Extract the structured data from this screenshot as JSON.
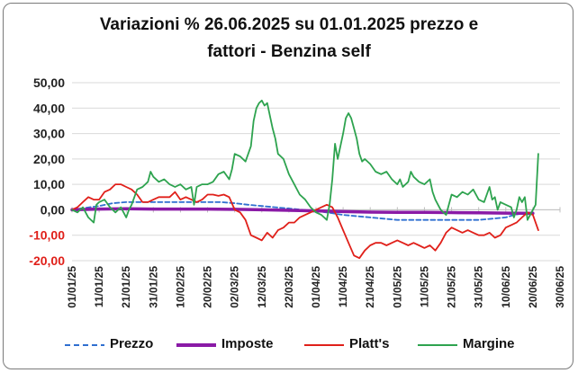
{
  "chart_data": {
    "type": "line",
    "title": "Variazioni % 26.06.2025 su 01.01.2025 prezzo e",
    "title_line2": "fattori - Benzina self",
    "ylim": [
      -20,
      50
    ],
    "yticks": [
      "50,00",
      "40,00",
      "30,00",
      "20,00",
      "10,00",
      "0,00",
      "-10,00",
      "-20,00"
    ],
    "xticks": [
      "01/01/25",
      "11/01/25",
      "21/01/25",
      "31/01/25",
      "10/02/25",
      "20/02/25",
      "02/03/25",
      "12/03/25",
      "22/03/25",
      "01/04/25",
      "11/04/25",
      "21/04/25",
      "01/05/25",
      "11/05/25",
      "21/05/25",
      "31/05/25",
      "10/06/25",
      "20/06/25",
      "30/06/25"
    ],
    "x_unit": "days since 01/01/25 (tick every 10 days)",
    "grid": "horizontal",
    "legend_position": "bottom",
    "series": [
      {
        "name": "Prezzo",
        "color": "#2f6fd0",
        "style": "dashed",
        "points": [
          [
            0,
            0
          ],
          [
            5,
            0.8
          ],
          [
            10,
            1.5
          ],
          [
            15,
            2.6
          ],
          [
            20,
            3
          ],
          [
            30,
            3
          ],
          [
            40,
            3
          ],
          [
            50,
            3
          ],
          [
            55,
            3
          ],
          [
            60,
            2.6
          ],
          [
            65,
            2
          ],
          [
            70,
            1.5
          ],
          [
            75,
            1
          ],
          [
            80,
            0.5
          ],
          [
            85,
            0
          ],
          [
            90,
            -0.5
          ],
          [
            95,
            -1.2
          ],
          [
            100,
            -2
          ],
          [
            105,
            -2.5
          ],
          [
            110,
            -3
          ],
          [
            115,
            -3.5
          ],
          [
            120,
            -4
          ],
          [
            125,
            -4
          ],
          [
            130,
            -4
          ],
          [
            135,
            -4
          ],
          [
            140,
            -4
          ],
          [
            145,
            -4
          ],
          [
            150,
            -4
          ],
          [
            155,
            -3.5
          ],
          [
            160,
            -3
          ],
          [
            163,
            -2
          ],
          [
            166,
            -1.5
          ],
          [
            170,
            -1
          ]
        ]
      },
      {
        "name": "Imposte",
        "color": "#8a1aa6",
        "style": "solid",
        "points": [
          [
            0,
            0
          ],
          [
            10,
            0.3
          ],
          [
            20,
            0.4
          ],
          [
            30,
            0.3
          ],
          [
            40,
            0.3
          ],
          [
            50,
            0.3
          ],
          [
            60,
            0.2
          ],
          [
            70,
            0
          ],
          [
            80,
            -0.2
          ],
          [
            90,
            -0.4
          ],
          [
            100,
            -0.7
          ],
          [
            110,
            -0.9
          ],
          [
            120,
            -1
          ],
          [
            130,
            -1
          ],
          [
            140,
            -1.1
          ],
          [
            150,
            -1.2
          ],
          [
            160,
            -1.3
          ],
          [
            170,
            -1.4
          ]
        ]
      },
      {
        "name": "Platt's",
        "color": "#e0201a",
        "style": "solid",
        "points": [
          [
            0,
            0
          ],
          [
            2,
            1
          ],
          [
            4,
            3
          ],
          [
            6,
            5
          ],
          [
            8,
            4
          ],
          [
            10,
            4
          ],
          [
            12,
            7
          ],
          [
            14,
            8
          ],
          [
            16,
            10
          ],
          [
            18,
            10
          ],
          [
            20,
            9
          ],
          [
            22,
            8
          ],
          [
            24,
            6
          ],
          [
            26,
            3
          ],
          [
            28,
            3
          ],
          [
            30,
            4
          ],
          [
            32,
            5
          ],
          [
            34,
            5
          ],
          [
            36,
            5
          ],
          [
            38,
            7
          ],
          [
            40,
            4
          ],
          [
            42,
            5
          ],
          [
            44,
            4
          ],
          [
            46,
            3
          ],
          [
            48,
            4
          ],
          [
            50,
            6
          ],
          [
            52,
            6
          ],
          [
            54,
            5.5
          ],
          [
            56,
            6
          ],
          [
            58,
            5
          ],
          [
            60,
            0
          ],
          [
            62,
            -1
          ],
          [
            64,
            -4
          ],
          [
            66,
            -10
          ],
          [
            68,
            -11
          ],
          [
            70,
            -12
          ],
          [
            72,
            -9
          ],
          [
            74,
            -11
          ],
          [
            76,
            -8
          ],
          [
            78,
            -7
          ],
          [
            80,
            -5
          ],
          [
            82,
            -5
          ],
          [
            84,
            -3
          ],
          [
            86,
            -2
          ],
          [
            88,
            -1
          ],
          [
            90,
            0
          ],
          [
            92,
            1
          ],
          [
            94,
            2
          ],
          [
            96,
            1
          ],
          [
            98,
            -3
          ],
          [
            100,
            -8
          ],
          [
            102,
            -13
          ],
          [
            104,
            -18
          ],
          [
            106,
            -19
          ],
          [
            108,
            -16
          ],
          [
            110,
            -14
          ],
          [
            112,
            -13
          ],
          [
            114,
            -13
          ],
          [
            116,
            -14
          ],
          [
            118,
            -13
          ],
          [
            120,
            -12
          ],
          [
            122,
            -13
          ],
          [
            124,
            -14
          ],
          [
            126,
            -13
          ],
          [
            128,
            -14
          ],
          [
            130,
            -15
          ],
          [
            132,
            -14
          ],
          [
            134,
            -16
          ],
          [
            136,
            -13
          ],
          [
            138,
            -9
          ],
          [
            140,
            -7
          ],
          [
            142,
            -8
          ],
          [
            144,
            -9
          ],
          [
            146,
            -8
          ],
          [
            148,
            -9
          ],
          [
            150,
            -10
          ],
          [
            152,
            -10
          ],
          [
            154,
            -9
          ],
          [
            156,
            -11
          ],
          [
            158,
            -10
          ],
          [
            160,
            -7
          ],
          [
            162,
            -6
          ],
          [
            164,
            -5
          ],
          [
            166,
            -3
          ],
          [
            168,
            -1
          ],
          [
            170,
            -2
          ],
          [
            172,
            -8
          ]
        ]
      },
      {
        "name": "Margine",
        "color": "#2ea34f",
        "style": "solid",
        "points": [
          [
            0,
            0
          ],
          [
            2,
            -1
          ],
          [
            4,
            1
          ],
          [
            6,
            -3
          ],
          [
            8,
            -5
          ],
          [
            9,
            2
          ],
          [
            10,
            3
          ],
          [
            12,
            4
          ],
          [
            14,
            1
          ],
          [
            16,
            -1
          ],
          [
            18,
            1
          ],
          [
            20,
            -3
          ],
          [
            21,
            0
          ],
          [
            22,
            2
          ],
          [
            24,
            8
          ],
          [
            26,
            9
          ],
          [
            28,
            11
          ],
          [
            29,
            15
          ],
          [
            30,
            13
          ],
          [
            32,
            11
          ],
          [
            34,
            12
          ],
          [
            36,
            10
          ],
          [
            38,
            9
          ],
          [
            40,
            10
          ],
          [
            42,
            8
          ],
          [
            44,
            9
          ],
          [
            45,
            2
          ],
          [
            46,
            9
          ],
          [
            48,
            10
          ],
          [
            50,
            10
          ],
          [
            52,
            11
          ],
          [
            54,
            14
          ],
          [
            56,
            15
          ],
          [
            58,
            12
          ],
          [
            59,
            16
          ],
          [
            60,
            22
          ],
          [
            62,
            21
          ],
          [
            64,
            19
          ],
          [
            66,
            25
          ],
          [
            67,
            35
          ],
          [
            68,
            40
          ],
          [
            69,
            42
          ],
          [
            70,
            43
          ],
          [
            71,
            41
          ],
          [
            72,
            42
          ],
          [
            73,
            37
          ],
          [
            74,
            32
          ],
          [
            75,
            28
          ],
          [
            76,
            22
          ],
          [
            78,
            20
          ],
          [
            79,
            17
          ],
          [
            80,
            14
          ],
          [
            82,
            10
          ],
          [
            84,
            6
          ],
          [
            86,
            4
          ],
          [
            88,
            1
          ],
          [
            90,
            -1
          ],
          [
            92,
            -2
          ],
          [
            93,
            -3
          ],
          [
            94,
            -4
          ],
          [
            95,
            2
          ],
          [
            96,
            12
          ],
          [
            97,
            26
          ],
          [
            98,
            20
          ],
          [
            99,
            25
          ],
          [
            100,
            30
          ],
          [
            101,
            36
          ],
          [
            102,
            38
          ],
          [
            103,
            36
          ],
          [
            104,
            32
          ],
          [
            105,
            28
          ],
          [
            106,
            22
          ],
          [
            107,
            19
          ],
          [
            108,
            20
          ],
          [
            110,
            18
          ],
          [
            112,
            15
          ],
          [
            114,
            14
          ],
          [
            116,
            15
          ],
          [
            118,
            12
          ],
          [
            120,
            10
          ],
          [
            121,
            12
          ],
          [
            122,
            9
          ],
          [
            124,
            11
          ],
          [
            125,
            15
          ],
          [
            126,
            13
          ],
          [
            128,
            11
          ],
          [
            130,
            10
          ],
          [
            132,
            12
          ],
          [
            133,
            7
          ],
          [
            134,
            4
          ],
          [
            135,
            2
          ],
          [
            136,
            0
          ],
          [
            138,
            -2
          ],
          [
            140,
            6
          ],
          [
            142,
            5
          ],
          [
            144,
            7
          ],
          [
            146,
            6
          ],
          [
            148,
            8
          ],
          [
            150,
            4
          ],
          [
            152,
            3
          ],
          [
            154,
            9
          ],
          [
            155,
            4
          ],
          [
            156,
            5
          ],
          [
            157,
            0
          ],
          [
            158,
            3
          ],
          [
            160,
            2
          ],
          [
            162,
            1
          ],
          [
            163,
            -3
          ],
          [
            164,
            0
          ],
          [
            165,
            5
          ],
          [
            166,
            3
          ],
          [
            167,
            5
          ],
          [
            168,
            -4
          ],
          [
            169,
            -2
          ],
          [
            170,
            0
          ],
          [
            171,
            2
          ],
          [
            172,
            22
          ]
        ]
      }
    ]
  }
}
